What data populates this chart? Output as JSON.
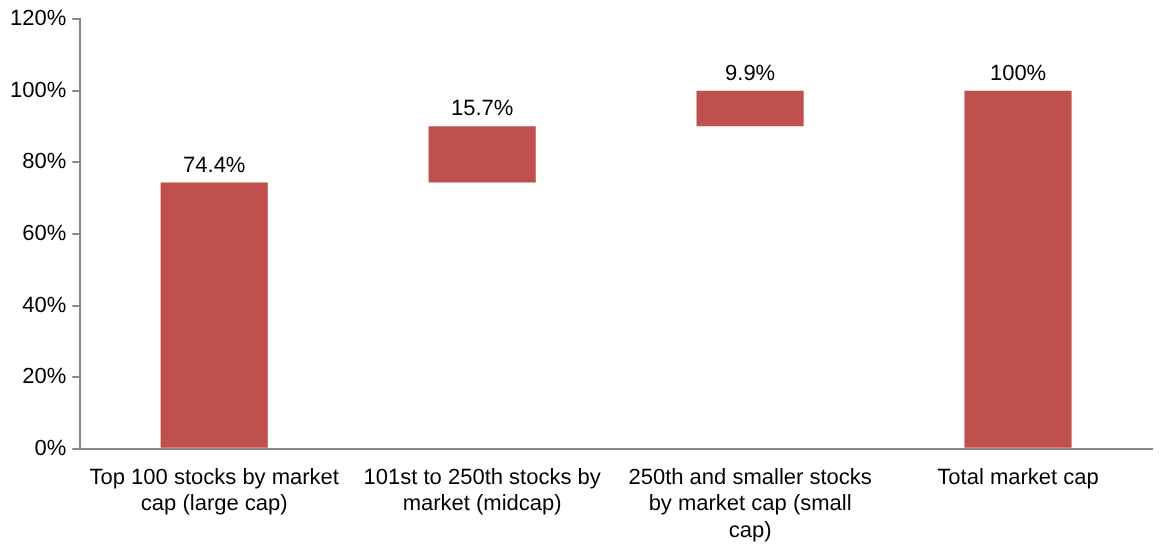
{
  "chart_data": {
    "type": "bar",
    "categories": [
      "Top 100 stocks by market cap (large cap)",
      "101st to 250th stocks by market (midcap)",
      "250th and smaller stocks by market cap (small cap)",
      "Total market cap"
    ],
    "values": [
      74.4,
      15.7,
      9.9,
      100
    ],
    "base": [
      0,
      74.4,
      90.1,
      0
    ],
    "color": "#c0504d",
    "value_labels": [
      "74.4%",
      "15.7%",
      "9.9%",
      "100%"
    ],
    "ylim": [
      0,
      120
    ],
    "yticks": [
      {
        "value": 0,
        "label": "0%"
      },
      {
        "value": 20,
        "label": "20%"
      },
      {
        "value": 40,
        "label": "40%"
      },
      {
        "value": 60,
        "label": "60%"
      },
      {
        "value": 80,
        "label": "80%"
      },
      {
        "value": 100,
        "label": "100%"
      },
      {
        "value": 120,
        "label": "120%"
      }
    ],
    "grid": false,
    "legend": false
  }
}
